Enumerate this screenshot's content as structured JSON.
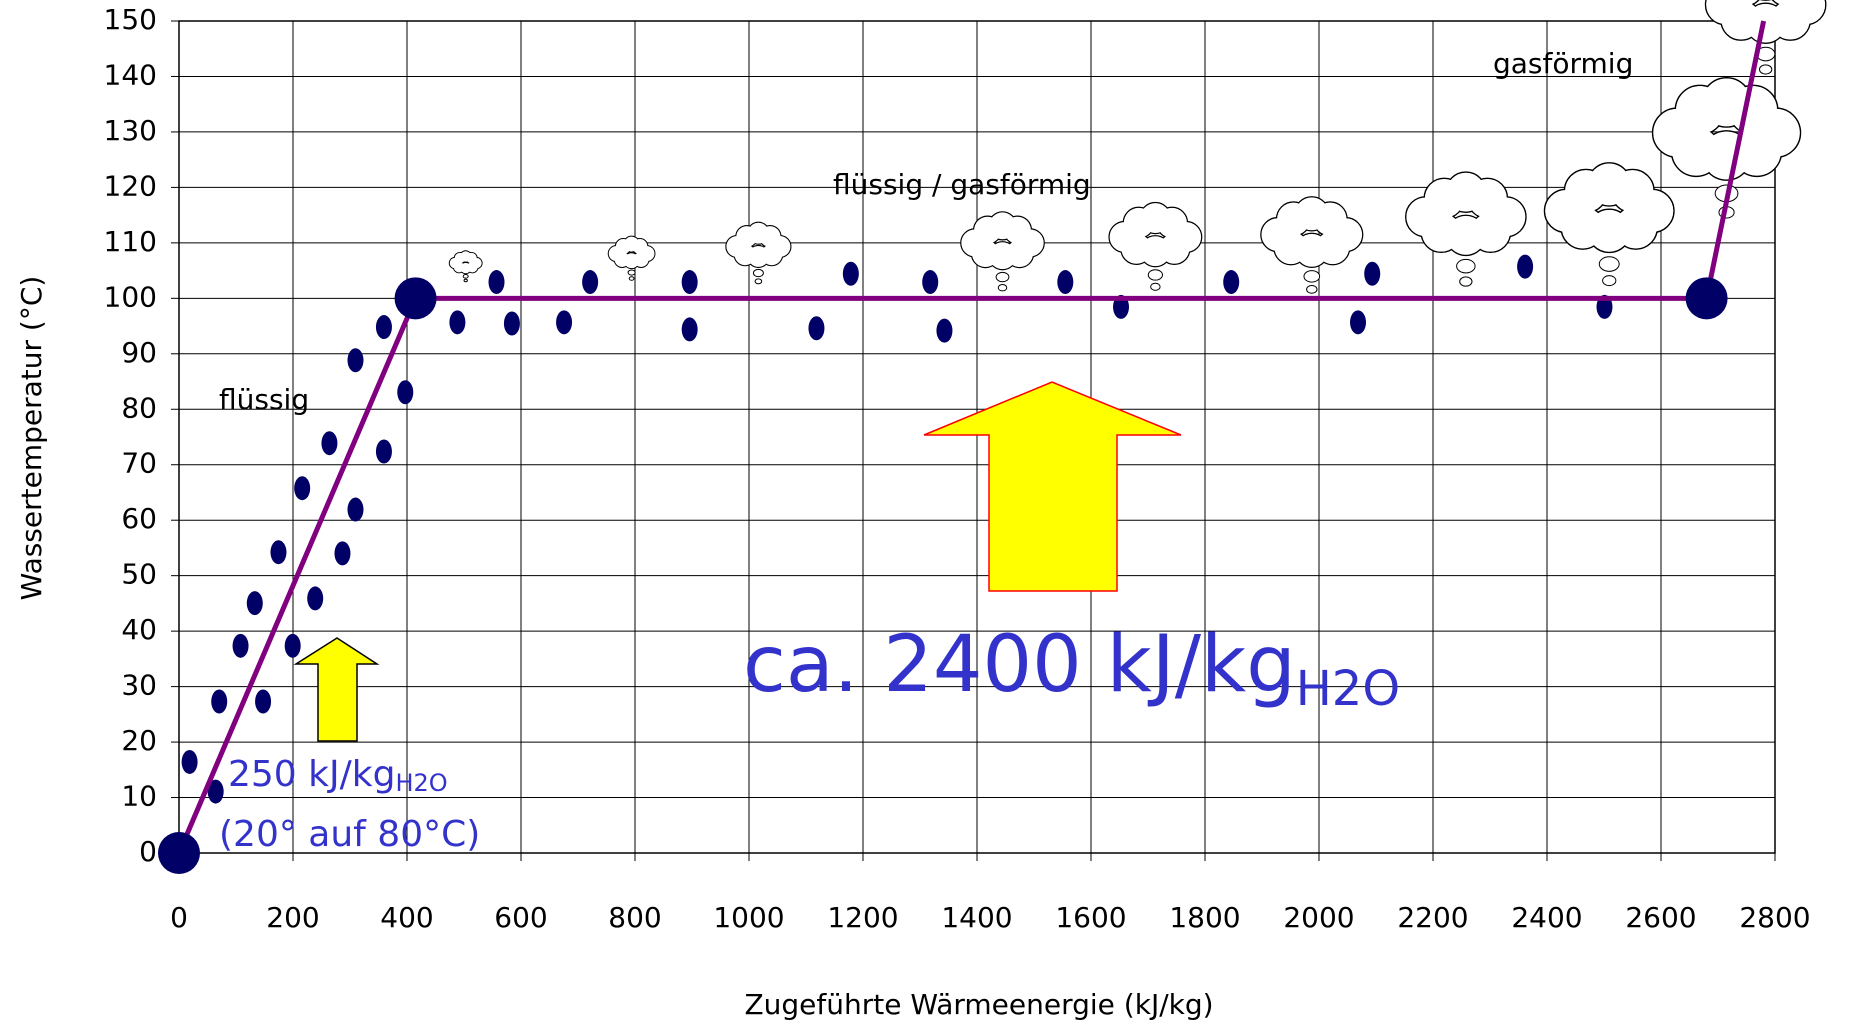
{
  "chart_data": {
    "type": "line",
    "x_label": "Zugeführte Wärmeenergie (kJ/kg)",
    "y_label": "Wassertemperatur (°C)",
    "x": [
      0,
      415,
      2680,
      2780
    ],
    "values": [
      0,
      100,
      100,
      150
    ],
    "color": "#800080",
    "marker_color": "#000066",
    "xlim": [
      0,
      2800
    ],
    "xticks": [
      0,
      200,
      400,
      600,
      800,
      1000,
      1200,
      1400,
      1600,
      1800,
      2000,
      2200,
      2400,
      2600,
      2800
    ],
    "ylim": [
      0,
      150
    ],
    "yticks": [
      0,
      10,
      20,
      30,
      40,
      50,
      60,
      70,
      80,
      90,
      100,
      110,
      120,
      130,
      140,
      150
    ],
    "grid": true,
    "annotations": [
      "flüssig",
      "flüssig / gasförmig",
      "gasförmig",
      "250 kJ/kg",
      "H2O",
      "(20° auf 80°C)",
      "ca. 2400 kJ/kg",
      "H2O"
    ]
  }
}
